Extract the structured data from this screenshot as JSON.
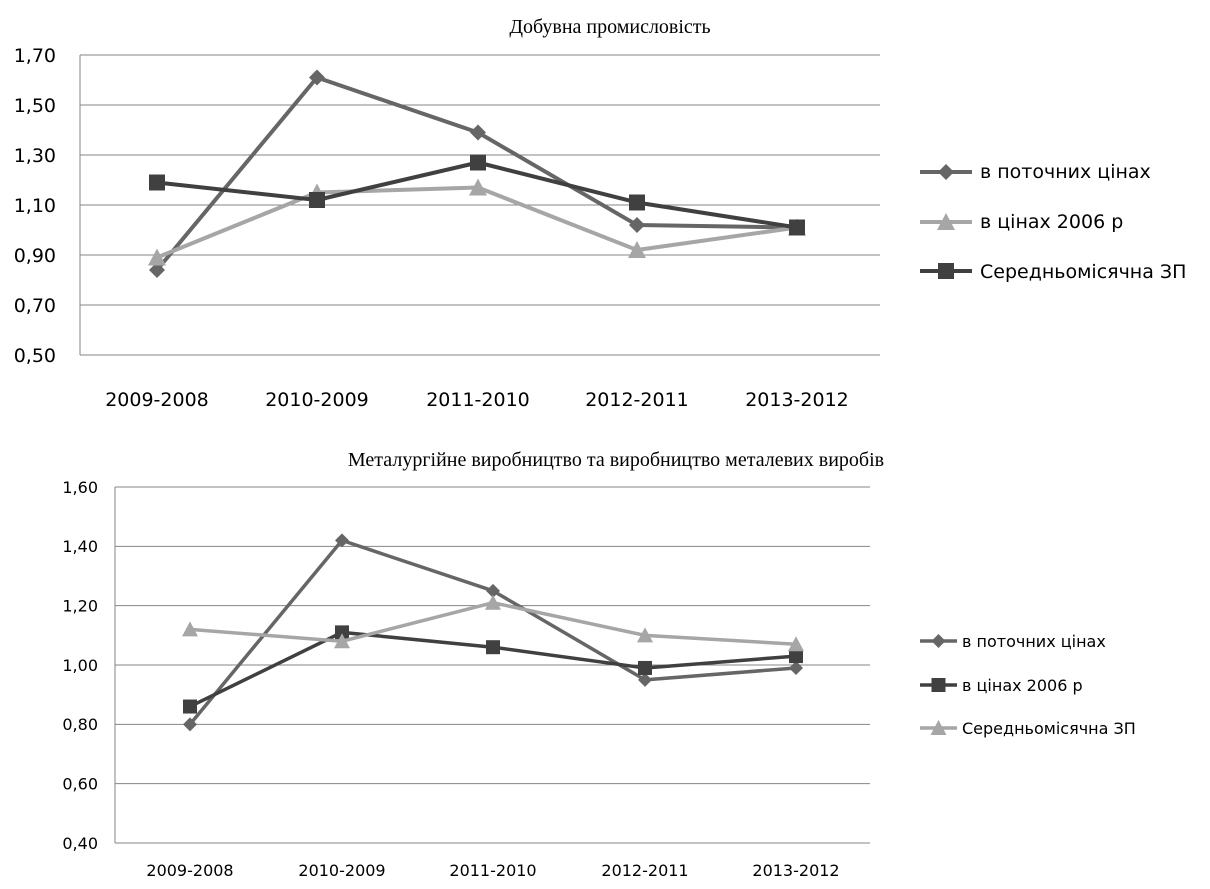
{
  "colors": {
    "dark": "#404040",
    "medium": "#666666",
    "light": "#a6a6a6",
    "grid": "#868686"
  },
  "chart_data": [
    {
      "type": "line",
      "title": "Добувна промисловість",
      "categories": [
        "2009-2008",
        "2010-2009",
        "2011-2010",
        "2012-2011",
        "2013-2012"
      ],
      "ylim": [
        0.5,
        1.7
      ],
      "ytick_labels": [
        "0,50",
        "0,70",
        "0,90",
        "1,10",
        "1,30",
        "1,50",
        "1,70"
      ],
      "grid": true,
      "legend": "right",
      "series": [
        {
          "name": "в поточних цінах",
          "marker": "diamond",
          "color": "#666666",
          "values": [
            0.84,
            1.61,
            1.39,
            1.02,
            1.01
          ]
        },
        {
          "name": "в цінах 2006 р",
          "marker": "triangle",
          "color": "#a6a6a6",
          "values": [
            0.89,
            1.15,
            1.17,
            0.92,
            1.01
          ]
        },
        {
          "name": "Середньомісячна ЗП",
          "marker": "square",
          "color": "#404040",
          "values": [
            1.19,
            1.12,
            1.27,
            1.11,
            1.01
          ]
        }
      ]
    },
    {
      "type": "line",
      "title": "Металургійне виробництво та виробництво металевих виробів",
      "categories": [
        "2009-2008",
        "2010-2009",
        "2011-2010",
        "2012-2011",
        "2013-2012"
      ],
      "ylim": [
        0.4,
        1.6
      ],
      "ytick_labels": [
        "0,40",
        "0,60",
        "0,80",
        "1,00",
        "1,20",
        "1,40",
        "1,60"
      ],
      "grid": true,
      "legend": "right",
      "series": [
        {
          "name": "в поточних цінах",
          "marker": "diamond",
          "color": "#666666",
          "values": [
            0.8,
            1.42,
            1.25,
            0.95,
            0.99
          ]
        },
        {
          "name": "в цінах 2006 р",
          "marker": "square",
          "color": "#404040",
          "values": [
            0.86,
            1.11,
            1.06,
            0.99,
            1.03
          ]
        },
        {
          "name": "Середньомісячна ЗП",
          "marker": "triangle",
          "color": "#a6a6a6",
          "values": [
            1.12,
            1.08,
            1.21,
            1.1,
            1.07
          ]
        }
      ]
    }
  ]
}
